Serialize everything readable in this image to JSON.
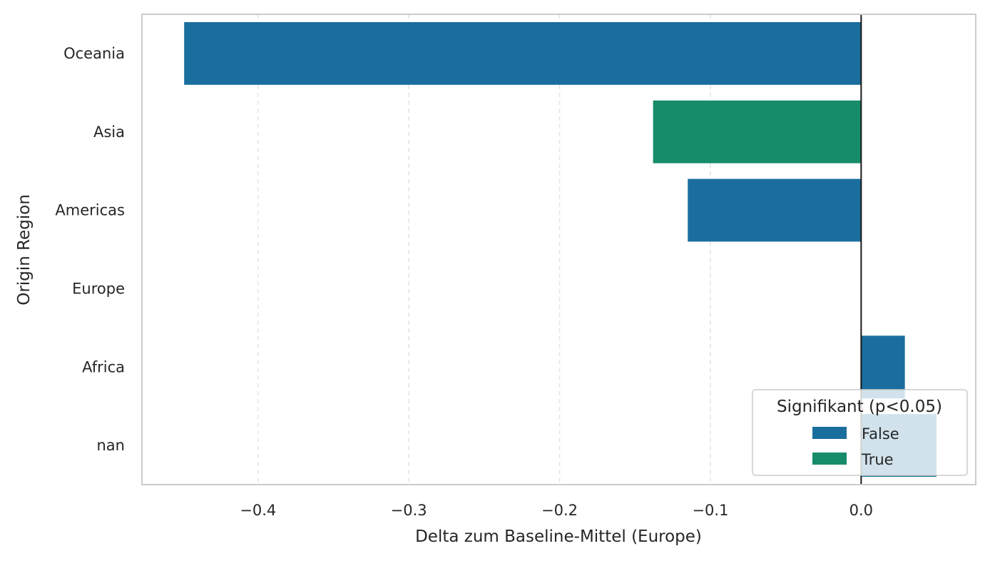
{
  "chart_data": {
    "type": "bar",
    "orientation": "horizontal",
    "title": "",
    "xlabel": "Delta zum Baseline-Mittel (Europe)",
    "ylabel": "Origin Region",
    "categories": [
      "Oceania",
      "Asia",
      "Americas",
      "Europe",
      "Africa",
      "nan"
    ],
    "values": [
      -0.449,
      -0.138,
      -0.115,
      0.0,
      0.029,
      0.05
    ],
    "significant": [
      "False",
      "True",
      "False",
      "False",
      "False",
      "False"
    ],
    "xlim": [
      -0.477,
      0.076
    ],
    "xticks": [
      -0.4,
      -0.3,
      -0.2,
      -0.1,
      0.0
    ],
    "xtick_labels": [
      "−0.4",
      "−0.3",
      "−0.2",
      "−0.1",
      "0.0"
    ],
    "reference_line": 0.0,
    "grid": "x, dashed",
    "legend": {
      "title": "Signifikant (p<0.05)",
      "placement": "lower-right",
      "entries": [
        {
          "label": "False",
          "color": "#1a6e9e"
        },
        {
          "label": "True",
          "color": "#168c6a"
        }
      ]
    },
    "colors": {
      "False": "#1a6e9e",
      "True": "#168c6a"
    }
  }
}
